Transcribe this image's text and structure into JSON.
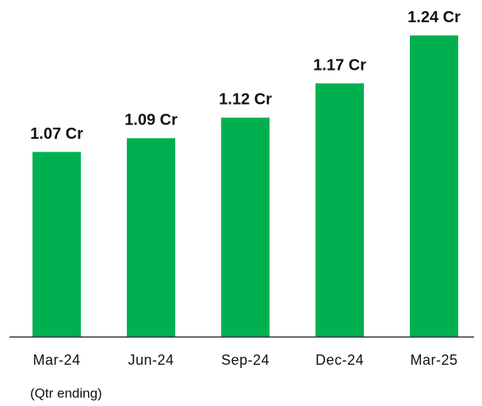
{
  "chart_data": {
    "type": "bar",
    "categories": [
      "Mar-24",
      "Jun-24",
      "Sep-24",
      "Dec-24",
      "Mar-25"
    ],
    "values": [
      1.07,
      1.09,
      1.12,
      1.17,
      1.24
    ],
    "value_labels": [
      "1.07 Cr",
      "1.09 Cr",
      "1.12 Cr",
      "1.17 Cr",
      "1.24 Cr"
    ],
    "color": "#00b050",
    "ylim": [
      0.8,
      1.25
    ],
    "note": "(Qtr ending)"
  }
}
